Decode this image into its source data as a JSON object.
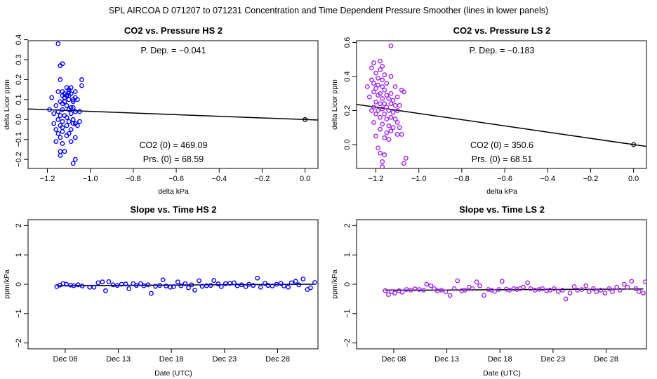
{
  "figure": {
    "title": "SPL   AIRCOA D   071207 to 071231   Concentration and Time Dependent Pressure Smoother (lines in lower panels)"
  },
  "colors": {
    "hs": "#0000ff",
    "ls": "#a020f0",
    "line": "#000000"
  },
  "chart_data": [
    {
      "type": "scatter",
      "title": "CO2 vs. Pressure HS 2",
      "xlabel": "delta kPa",
      "ylabel": "delta Licor ppm",
      "xlim": [
        -1.29,
        0.06
      ],
      "ylim": [
        -0.245,
        0.395
      ],
      "xticks": [
        -1.2,
        -1.0,
        -0.8,
        -0.6,
        -0.4,
        -0.2,
        0.0
      ],
      "xtick_labels": [
        "−1.2",
        "−1.0",
        "−0.8",
        "−0.6",
        "−0.4",
        "−0.2",
        "0.0"
      ],
      "yticks": [
        -0.2,
        -0.1,
        0.0,
        0.1,
        0.2,
        0.3,
        0.4
      ],
      "ytick_labels": [
        "−0.2",
        "−0.1",
        "0.0",
        "0.1",
        "0.2",
        "0.3",
        "0.4"
      ],
      "series_color": "#0000ff",
      "annotations": {
        "p_dep": "P. Dep. =  −0.041",
        "co2_0": "CO2 (0) =  469.09",
        "prs_0": "Prs. (0) =  68.59"
      },
      "fit_line": {
        "intercept": 0.0,
        "slope": -0.041
      },
      "reference_point": {
        "x": 0.0,
        "y": 0.0
      },
      "points": [
        [
          -1.19,
          0.05
        ],
        [
          -1.18,
          0.11
        ],
        [
          -1.17,
          0.03
        ],
        [
          -1.17,
          -0.02
        ],
        [
          -1.16,
          0.07
        ],
        [
          -1.16,
          -0.05
        ],
        [
          -1.16,
          -0.11
        ],
        [
          -1.15,
          0.14
        ],
        [
          -1.15,
          0.04
        ],
        [
          -1.15,
          0.0
        ],
        [
          -1.15,
          -0.07
        ],
        [
          -1.15,
          0.38
        ],
        [
          -1.14,
          0.27
        ],
        [
          -1.14,
          0.2
        ],
        [
          -1.14,
          0.09
        ],
        [
          -1.14,
          0.02
        ],
        [
          -1.14,
          -0.03
        ],
        [
          -1.14,
          -0.09
        ],
        [
          -1.14,
          -0.16
        ],
        [
          -1.14,
          -0.18
        ],
        [
          -1.13,
          0.28
        ],
        [
          -1.13,
          0.14
        ],
        [
          -1.13,
          0.12
        ],
        [
          -1.13,
          0.08
        ],
        [
          -1.13,
          0.05
        ],
        [
          -1.13,
          -0.01
        ],
        [
          -1.13,
          -0.04
        ],
        [
          -1.13,
          -0.06
        ],
        [
          -1.13,
          -0.12
        ],
        [
          -1.12,
          0.13
        ],
        [
          -1.12,
          0.11
        ],
        [
          -1.12,
          0.09
        ],
        [
          -1.12,
          0.02
        ],
        [
          -1.12,
          -0.16
        ],
        [
          -1.11,
          0.16
        ],
        [
          -1.11,
          0.12
        ],
        [
          -1.11,
          0.07
        ],
        [
          -1.11,
          0.01
        ],
        [
          -1.11,
          -0.03
        ],
        [
          -1.11,
          -0.08
        ],
        [
          -1.1,
          0.15
        ],
        [
          -1.1,
          0.14
        ],
        [
          -1.1,
          0.12
        ],
        [
          -1.1,
          0.1
        ],
        [
          -1.1,
          0.05
        ],
        [
          -1.1,
          -0.01
        ],
        [
          -1.1,
          -0.07
        ],
        [
          -1.09,
          0.16
        ],
        [
          -1.09,
          0.13
        ],
        [
          -1.09,
          0.06
        ],
        [
          -1.09,
          0.03
        ],
        [
          -1.09,
          -0.05
        ],
        [
          -1.09,
          -0.11
        ],
        [
          -1.08,
          0.1
        ],
        [
          -1.08,
          0.09
        ],
        [
          -1.08,
          0.06
        ],
        [
          -1.08,
          0.0
        ],
        [
          -1.08,
          -0.02
        ],
        [
          -1.08,
          -0.22
        ],
        [
          -1.07,
          0.14
        ],
        [
          -1.07,
          0.11
        ],
        [
          -1.07,
          0.04
        ],
        [
          -1.07,
          -0.02
        ],
        [
          -1.07,
          -0.09
        ],
        [
          -1.07,
          -0.2
        ],
        [
          -1.06,
          0.1
        ],
        [
          -1.06,
          -0.03
        ],
        [
          -1.05,
          0.04
        ],
        [
          -1.05,
          -0.01
        ],
        [
          -1.04,
          0.2
        ],
        [
          -1.04,
          0.17
        ]
      ]
    },
    {
      "type": "scatter",
      "title": "CO2 vs. Pressure LS 2",
      "xlabel": "delta kPa",
      "ylabel": "delta Licor ppm",
      "xlim": [
        -1.29,
        0.06
      ],
      "ylim": [
        -0.14,
        0.61
      ],
      "xticks": [
        -1.2,
        -1.0,
        -0.8,
        -0.6,
        -0.4,
        -0.2,
        0.0
      ],
      "xtick_labels": [
        "−1.2",
        "−1.0",
        "−0.8",
        "−0.6",
        "−0.4",
        "−0.2",
        "0.0"
      ],
      "yticks": [
        0.0,
        0.2,
        0.4,
        0.6
      ],
      "ytick_labels": [
        "0.0",
        "0.2",
        "0.4",
        "0.6"
      ],
      "series_color": "#a020f0",
      "annotations": {
        "p_dep": "P. Dep. =  −0.183",
        "co2_0": "CO2 (0) =  350.6",
        "prs_0": "Prs. (0) =  68.51"
      },
      "fit_line": {
        "intercept": 0.0,
        "slope": -0.183
      },
      "reference_point": {
        "x": 0.0,
        "y": 0.0
      },
      "points": [
        [
          -1.24,
          0.34
        ],
        [
          -1.23,
          0.28
        ],
        [
          -1.22,
          0.45
        ],
        [
          -1.22,
          0.38
        ],
        [
          -1.22,
          0.2
        ],
        [
          -1.21,
          0.48
        ],
        [
          -1.21,
          0.36
        ],
        [
          -1.21,
          0.31
        ],
        [
          -1.21,
          0.22
        ],
        [
          -1.21,
          0.13
        ],
        [
          -1.2,
          0.42
        ],
        [
          -1.2,
          0.33
        ],
        [
          -1.2,
          0.25
        ],
        [
          -1.2,
          0.18
        ],
        [
          -1.2,
          0.05
        ],
        [
          -1.19,
          0.39
        ],
        [
          -1.19,
          0.35
        ],
        [
          -1.19,
          0.29
        ],
        [
          -1.19,
          0.2
        ],
        [
          -1.19,
          -0.02
        ],
        [
          -1.18,
          0.49
        ],
        [
          -1.18,
          0.44
        ],
        [
          -1.18,
          0.3
        ],
        [
          -1.18,
          0.24
        ],
        [
          -1.18,
          0.16
        ],
        [
          -1.18,
          0.09
        ],
        [
          -1.18,
          -0.05
        ],
        [
          -1.17,
          0.46
        ],
        [
          -1.17,
          0.38
        ],
        [
          -1.17,
          0.34
        ],
        [
          -1.17,
          0.27
        ],
        [
          -1.17,
          0.21
        ],
        [
          -1.17,
          0.12
        ],
        [
          -1.17,
          -0.1
        ],
        [
          -1.17,
          -0.13
        ],
        [
          -1.16,
          0.41
        ],
        [
          -1.16,
          0.32
        ],
        [
          -1.16,
          0.24
        ],
        [
          -1.16,
          0.18
        ],
        [
          -1.16,
          0.04
        ],
        [
          -1.16,
          -0.06
        ],
        [
          -1.15,
          0.36
        ],
        [
          -1.15,
          0.29
        ],
        [
          -1.15,
          0.22
        ],
        [
          -1.15,
          0.15
        ],
        [
          -1.15,
          0.07
        ],
        [
          -1.14,
          0.27
        ],
        [
          -1.14,
          0.2
        ],
        [
          -1.14,
          0.11
        ],
        [
          -1.14,
          0.03
        ],
        [
          -1.13,
          0.58
        ],
        [
          -1.13,
          0.4
        ],
        [
          -1.13,
          0.3
        ],
        [
          -1.13,
          0.24
        ],
        [
          -1.13,
          0.16
        ],
        [
          -1.13,
          0.08
        ],
        [
          -1.12,
          0.26
        ],
        [
          -1.12,
          0.19
        ],
        [
          -1.12,
          0.1
        ],
        [
          -1.11,
          0.34
        ],
        [
          -1.11,
          0.23
        ],
        [
          -1.11,
          0.15
        ],
        [
          -1.1,
          0.28
        ],
        [
          -1.1,
          0.2
        ],
        [
          -1.1,
          0.13
        ],
        [
          -1.1,
          0.06
        ],
        [
          -1.09,
          0.23
        ],
        [
          -1.09,
          0.1
        ],
        [
          -1.08,
          0.32
        ],
        [
          -1.08,
          0.06
        ],
        [
          -1.07,
          -0.11
        ],
        [
          -1.07,
          0.31
        ],
        [
          -1.06,
          -0.08
        ]
      ]
    },
    {
      "type": "scatter",
      "title": "Slope vs. Time HS 2",
      "xlabel": "Date (UTC)",
      "ylabel": "ppm/kPa",
      "xlim": [
        4.5,
        31.8
      ],
      "ylim": [
        -2.2,
        2.2
      ],
      "xticks": [
        8,
        13,
        18,
        23,
        28
      ],
      "xtick_labels": [
        "Dec 08",
        "Dec 13",
        "Dec 18",
        "Dec 23",
        "Dec 28"
      ],
      "yticks": [
        -2,
        -1,
        0,
        1,
        2
      ],
      "ytick_labels": [
        "−2",
        "−1",
        "0",
        "1",
        "2"
      ],
      "series_color": "#0000ff",
      "smoother": [
        [
          7.2,
          -0.05
        ],
        [
          12,
          -0.04
        ],
        [
          17,
          -0.03
        ],
        [
          22,
          -0.02
        ],
        [
          27,
          -0.01
        ],
        [
          31.5,
          0.0
        ]
      ],
      "points": [
        [
          7.2,
          -0.08
        ],
        [
          7.5,
          -0.03
        ],
        [
          7.8,
          0.02
        ],
        [
          8.1,
          0.0
        ],
        [
          8.5,
          -0.03
        ],
        [
          8.8,
          -0.05
        ],
        [
          9.2,
          -0.02
        ],
        [
          9.6,
          -0.06
        ],
        [
          10.3,
          -0.1
        ],
        [
          10.7,
          -0.1
        ],
        [
          11.1,
          0.05
        ],
        [
          11.5,
          0.08
        ],
        [
          11.8,
          -0.22
        ],
        [
          12.1,
          0.09
        ],
        [
          12.5,
          -0.02
        ],
        [
          12.9,
          -0.04
        ],
        [
          13.3,
          0.0
        ],
        [
          13.7,
          0.01
        ],
        [
          14.0,
          -0.15
        ],
        [
          14.4,
          0.02
        ],
        [
          14.7,
          -0.04
        ],
        [
          15.1,
          0.02
        ],
        [
          15.4,
          -0.05
        ],
        [
          15.8,
          -0.02
        ],
        [
          16.1,
          -0.31
        ],
        [
          16.5,
          -0.07
        ],
        [
          16.9,
          -0.04
        ],
        [
          17.2,
          0.15
        ],
        [
          17.5,
          -0.06
        ],
        [
          17.9,
          -0.1
        ],
        [
          18.2,
          -0.08
        ],
        [
          18.6,
          0.08
        ],
        [
          18.9,
          -0.05
        ],
        [
          19.3,
          0.02
        ],
        [
          19.6,
          -0.12
        ],
        [
          19.9,
          -0.02
        ],
        [
          20.2,
          -0.2
        ],
        [
          20.6,
          0.12
        ],
        [
          20.9,
          -0.07
        ],
        [
          21.3,
          -0.05
        ],
        [
          21.7,
          -0.04
        ],
        [
          22.0,
          0.13
        ],
        [
          22.4,
          0.01
        ],
        [
          22.7,
          -0.08
        ],
        [
          23.1,
          0.02
        ],
        [
          23.5,
          0.03
        ],
        [
          23.9,
          0.05
        ],
        [
          24.2,
          -0.05
        ],
        [
          24.6,
          -0.02
        ],
        [
          25.0,
          -0.08
        ],
        [
          25.3,
          0.0
        ],
        [
          25.7,
          -0.04
        ],
        [
          26.1,
          0.21
        ],
        [
          26.4,
          -0.1
        ],
        [
          26.8,
          0.03
        ],
        [
          27.1,
          -0.04
        ],
        [
          27.5,
          -0.06
        ],
        [
          27.9,
          0.0
        ],
        [
          28.3,
          0.03
        ],
        [
          28.6,
          -0.06
        ],
        [
          29.0,
          -0.1
        ],
        [
          29.3,
          0.05
        ],
        [
          29.7,
          0.1
        ],
        [
          30.0,
          -0.02
        ],
        [
          30.4,
          0.18
        ],
        [
          30.8,
          -0.18
        ],
        [
          31.1,
          -0.12
        ],
        [
          31.5,
          0.06
        ]
      ]
    },
    {
      "type": "scatter",
      "title": "Slope vs. Time LS 2",
      "xlabel": "Date (UTC)",
      "ylabel": "ppm/kPa",
      "xlim": [
        4.5,
        31.8
      ],
      "ylim": [
        -2.2,
        2.2
      ],
      "xticks": [
        8,
        13,
        18,
        23,
        28
      ],
      "xtick_labels": [
        "Dec 08",
        "Dec 13",
        "Dec 18",
        "Dec 23",
        "Dec 28"
      ],
      "yticks": [
        -2,
        -1,
        0,
        1,
        2
      ],
      "ytick_labels": [
        "−2",
        "−1",
        "0",
        "1",
        "2"
      ],
      "series_color": "#a020f0",
      "smoother": [
        [
          7.2,
          -0.2
        ],
        [
          12,
          -0.2
        ],
        [
          17,
          -0.19
        ],
        [
          22,
          -0.18
        ],
        [
          27,
          -0.17
        ],
        [
          31.5,
          -0.16
        ]
      ],
      "points": [
        [
          7.2,
          -0.22
        ],
        [
          7.5,
          -0.35
        ],
        [
          7.8,
          -0.25
        ],
        [
          8.1,
          -0.3
        ],
        [
          8.5,
          -0.22
        ],
        [
          8.8,
          -0.27
        ],
        [
          9.2,
          -0.18
        ],
        [
          9.6,
          -0.2
        ],
        [
          10.0,
          -0.16
        ],
        [
          10.4,
          -0.18
        ],
        [
          10.8,
          -0.2
        ],
        [
          11.1,
          0.0
        ],
        [
          11.5,
          -0.05
        ],
        [
          11.8,
          -0.15
        ],
        [
          12.1,
          -0.22
        ],
        [
          12.5,
          -0.2
        ],
        [
          12.9,
          -0.26
        ],
        [
          13.3,
          -0.38
        ],
        [
          13.7,
          -0.15
        ],
        [
          14.0,
          0.12
        ],
        [
          14.4,
          -0.22
        ],
        [
          14.7,
          -0.2
        ],
        [
          15.1,
          -0.1
        ],
        [
          15.4,
          -0.15
        ],
        [
          15.8,
          0.08
        ],
        [
          16.1,
          -0.05
        ],
        [
          16.5,
          -0.38
        ],
        [
          16.9,
          -0.18
        ],
        [
          17.2,
          -0.2
        ],
        [
          17.5,
          -0.24
        ],
        [
          17.9,
          -0.18
        ],
        [
          18.2,
          0.1
        ],
        [
          18.6,
          -0.17
        ],
        [
          18.9,
          -0.2
        ],
        [
          19.3,
          -0.15
        ],
        [
          19.6,
          -0.18
        ],
        [
          19.9,
          -0.15
        ],
        [
          20.2,
          -0.1
        ],
        [
          20.6,
          0.05
        ],
        [
          20.9,
          -0.15
        ],
        [
          21.3,
          -0.2
        ],
        [
          21.7,
          -0.18
        ],
        [
          22.0,
          -0.15
        ],
        [
          22.4,
          -0.22
        ],
        [
          22.7,
          -0.2
        ],
        [
          23.1,
          -0.15
        ],
        [
          23.5,
          -0.25
        ],
        [
          23.9,
          -0.2
        ],
        [
          24.2,
          -0.5
        ],
        [
          24.6,
          -0.3
        ],
        [
          25.0,
          -0.08
        ],
        [
          25.3,
          -0.2
        ],
        [
          25.7,
          -0.18
        ],
        [
          26.1,
          -0.05
        ],
        [
          26.4,
          -0.25
        ],
        [
          26.8,
          -0.15
        ],
        [
          27.1,
          -0.25
        ],
        [
          27.5,
          -0.2
        ],
        [
          27.9,
          -0.3
        ],
        [
          28.3,
          -0.15
        ],
        [
          28.6,
          -0.25
        ],
        [
          29.0,
          -0.1
        ],
        [
          29.3,
          -0.2
        ],
        [
          29.7,
          0.0
        ],
        [
          30.0,
          -0.1
        ],
        [
          30.4,
          0.1
        ],
        [
          30.8,
          -0.15
        ],
        [
          31.1,
          -0.25
        ],
        [
          31.5,
          -0.3
        ],
        [
          31.7,
          0.08
        ]
      ]
    }
  ]
}
